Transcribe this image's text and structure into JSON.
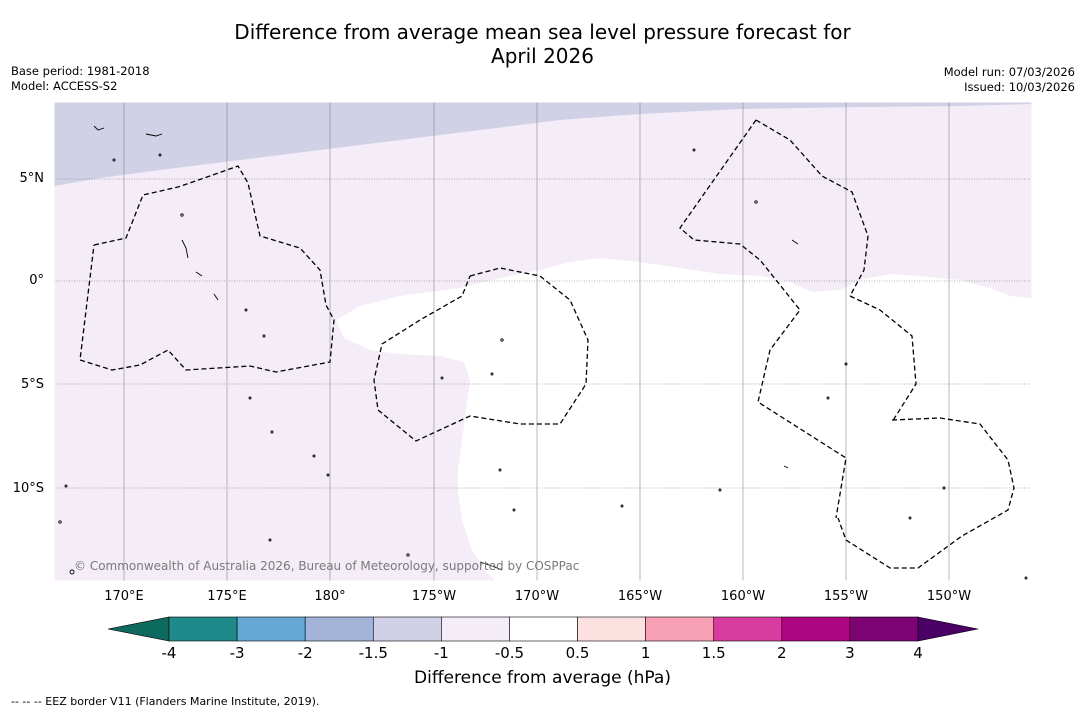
{
  "title_line1": "Difference from average mean sea level pressure forecast for",
  "title_line2": "April 2026",
  "base_period": "Base period: 1981-2018",
  "model": "Model: ACCESS-S2",
  "model_run": "Model run: 07/03/2026",
  "issued": "Issued: 10/03/2026",
  "lat_labels": [
    "5°N",
    "0°",
    "5°S",
    "10°S"
  ],
  "lon_labels": [
    "170°E",
    "175°E",
    "180°",
    "175°W",
    "170°W",
    "165°W",
    "160°W",
    "155°W",
    "150°W"
  ],
  "copyright": "© Commonwealth of Australia 2026, Bureau of Meteorology, supported by COSPPac",
  "colorbar": {
    "title": "Difference from average (hPa)",
    "ticks": [
      "-4",
      "-3",
      "-2",
      "-1.5",
      "-1",
      "-0.5",
      "0.5",
      "1",
      "1.5",
      "2",
      "3",
      "4"
    ],
    "colors": [
      "#1e8a8a",
      "#66a8d4",
      "#a4b4d8",
      "#d0d0e6",
      "#f4ecf6",
      "#ffffff",
      "#fde0e0",
      "#f7a0b6",
      "#d83c9e",
      "#ad0680",
      "#7c0373"
    ],
    "extend_low_color": "#0c6a5e",
    "extend_high_color": "#4a0064"
  },
  "legend_eez": "--  --  -- EEZ border V11 (Flanders Marine Institute, 2019).",
  "map_colors": {
    "background": "#f4ecf6",
    "north_band": "#d0d0e6",
    "neutral": "#ffffff"
  }
}
